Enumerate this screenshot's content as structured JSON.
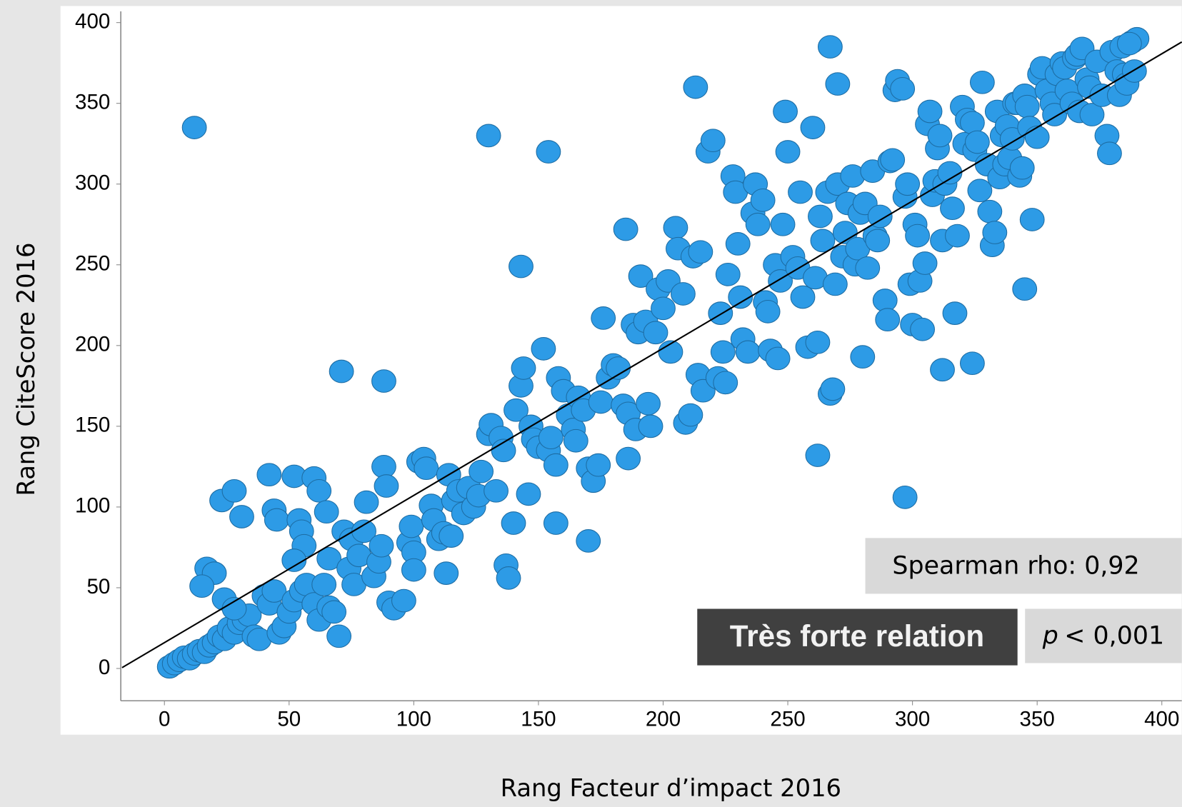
{
  "chart_data": {
    "type": "scatter",
    "x_label": "Rang Facteur d’impact 2016",
    "y_label": "Rang CiteScore 2016",
    "xlim": [
      -17.5,
      408
    ],
    "ylim": [
      -20,
      407
    ],
    "xticks": [
      0,
      50,
      100,
      150,
      200,
      250,
      300,
      350,
      400
    ],
    "yticks": [
      0,
      50,
      100,
      150,
      200,
      250,
      300,
      350,
      400
    ],
    "color": "#2d9be6",
    "fit_line": {
      "x": [
        -17,
        408
      ],
      "y": [
        0.5,
        388
      ]
    },
    "annotations": {
      "spearman": "Spearman rho: 0,92",
      "relation": "Très forte relation",
      "p_label": "p",
      "p_value": "< 0,001"
    },
    "x": [
      12,
      130,
      154,
      143,
      71,
      88,
      213,
      267,
      270,
      297,
      262,
      345,
      280,
      324,
      312,
      317,
      185,
      186,
      170,
      157,
      2,
      4,
      6,
      8,
      10,
      12,
      14,
      16,
      18,
      20,
      22,
      24,
      26,
      28,
      30,
      32,
      34,
      36,
      38,
      40,
      42,
      44,
      46,
      48,
      50,
      52,
      55,
      57,
      60,
      62,
      64,
      66,
      68,
      70,
      24,
      28,
      17,
      20,
      15,
      23,
      28,
      31,
      42,
      44,
      45,
      52,
      54,
      55,
      56,
      60,
      62,
      65,
      52,
      66,
      72,
      75,
      74,
      76,
      78,
      80,
      81,
      84,
      86,
      87,
      88,
      89,
      90,
      92,
      96,
      98,
      100,
      99,
      100,
      102,
      104,
      105,
      107,
      108,
      110,
      112,
      113,
      115,
      114,
      116,
      118,
      120,
      122,
      124,
      126,
      127,
      130,
      131,
      133,
      135,
      136,
      137,
      138,
      140,
      141,
      143,
      144,
      146,
      147,
      148,
      150,
      152,
      154,
      155,
      157,
      158,
      160,
      162,
      164,
      165,
      166,
      168,
      170,
      172,
      174,
      175,
      176,
      178,
      180,
      182,
      184,
      186,
      188,
      189,
      190,
      191,
      193,
      194,
      195,
      197,
      198,
      200,
      202,
      203,
      205,
      206,
      208,
      209,
      211,
      212,
      214,
      215,
      216,
      218,
      220,
      222,
      223,
      224,
      225,
      226,
      228,
      229,
      230,
      231,
      232,
      234,
      236,
      237,
      238,
      240,
      241,
      242,
      243,
      245,
      246,
      247,
      248,
      249,
      250,
      252,
      254,
      255,
      256,
      258,
      260,
      261,
      262,
      263,
      264,
      266,
      267,
      268,
      269,
      270,
      272,
      273,
      274,
      276,
      277,
      278,
      279,
      281,
      282,
      284,
      285,
      286,
      287,
      289,
      290,
      291,
      292,
      293,
      294,
      296,
      297,
      298,
      299,
      300,
      301,
      302,
      303,
      304,
      305,
      306,
      307,
      308,
      309,
      310,
      311,
      312,
      313,
      315,
      316,
      318,
      320,
      321,
      322,
      324,
      325,
      326,
      327,
      328,
      330,
      331,
      332,
      333,
      334,
      335,
      336,
      337,
      338,
      339,
      340,
      341,
      342,
      343,
      344,
      345,
      346,
      347,
      348,
      350,
      351,
      352,
      354,
      356,
      357,
      358,
      360,
      361,
      362,
      364,
      365,
      366,
      367,
      368,
      370,
      371,
      372,
      374,
      376,
      378,
      379,
      380,
      382,
      383,
      384,
      385,
      386,
      388,
      389,
      390,
      387
    ],
    "values": [
      335,
      330,
      320,
      249,
      184,
      178,
      360,
      385,
      362,
      106,
      132,
      235,
      193,
      189,
      185,
      220,
      272,
      130,
      79,
      90,
      1,
      3,
      5,
      7,
      6,
      9,
      11,
      10,
      14,
      16,
      20,
      18,
      25,
      22,
      28,
      30,
      33,
      20,
      18,
      45,
      40,
      48,
      22,
      26,
      35,
      42,
      48,
      52,
      40,
      30,
      52,
      38,
      35,
      20,
      43,
      37,
      62,
      59,
      51,
      104,
      110,
      94,
      120,
      98,
      92,
      119,
      92,
      85,
      76,
      118,
      110,
      97,
      67,
      68,
      85,
      80,
      62,
      52,
      70,
      85,
      103,
      57,
      66,
      76,
      125,
      113,
      41,
      37,
      42,
      78,
      72,
      88,
      61,
      128,
      130,
      124,
      101,
      92,
      80,
      84,
      59,
      82,
      120,
      104,
      110,
      96,
      112,
      100,
      107,
      122,
      145,
      151,
      110,
      143,
      135,
      64,
      56,
      90,
      160,
      175,
      186,
      108,
      150,
      142,
      137,
      198,
      135,
      143,
      126,
      180,
      172,
      157,
      148,
      141,
      168,
      160,
      124,
      116,
      126,
      165,
      217,
      180,
      188,
      186,
      163,
      158,
      213,
      148,
      208,
      243,
      215,
      164,
      150,
      208,
      235,
      223,
      240,
      196,
      273,
      260,
      232,
      152,
      157,
      255,
      182,
      258,
      172,
      320,
      327,
      180,
      220,
      196,
      177,
      244,
      305,
      295,
      263,
      230,
      204,
      196,
      282,
      300,
      275,
      290,
      227,
      221,
      197,
      250,
      192,
      240,
      275,
      345,
      320,
      255,
      248,
      295,
      230,
      199,
      335,
      242,
      202,
      280,
      265,
      295,
      170,
      173,
      238,
      300,
      255,
      270,
      288,
      305,
      250,
      260,
      282,
      288,
      248,
      308,
      268,
      265,
      280,
      228,
      216,
      314,
      315,
      358,
      364,
      359,
      292,
      300,
      238,
      213,
      275,
      268,
      240,
      210,
      251,
      337,
      345,
      293,
      302,
      322,
      330,
      265,
      300,
      307,
      285,
      268,
      348,
      325,
      340,
      338,
      321,
      326,
      296,
      363,
      312,
      283,
      262,
      270,
      345,
      304,
      330,
      312,
      336,
      316,
      328,
      350,
      350,
      305,
      310,
      355,
      348,
      335,
      278,
      329,
      368,
      372,
      358,
      350,
      343,
      368,
      375,
      372,
      358,
      350,
      378,
      380,
      345,
      384,
      365,
      360,
      343,
      376,
      355,
      330,
      319,
      382,
      370,
      355,
      385,
      368,
      362,
      388,
      370,
      390,
      387
    ]
  }
}
